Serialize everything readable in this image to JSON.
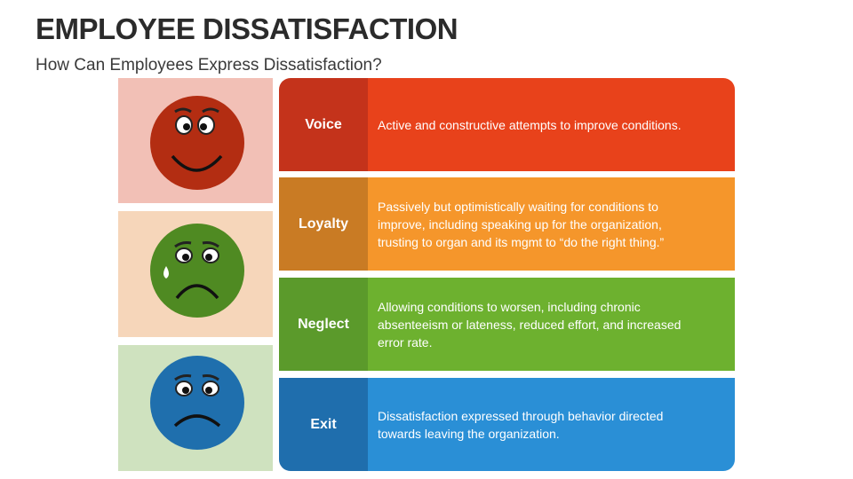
{
  "header": {
    "title": "EMPLOYEE DISSATISFACTION",
    "subtitle": "How Can Employees Express Dissatisfaction?"
  },
  "rows": [
    {
      "label": "Voice",
      "description": "Active and constructive attempts to improve conditions."
    },
    {
      "label": "Loyalty",
      "description": "Passively but optimistically waiting for conditions to improve, including speaking up for the organization, trusting to organ and its mgmt to “do the right thing.”"
    },
    {
      "label": "Neglect",
      "description": "Allowing conditions to worsen, including chronic absenteeism or lateness, reduced effort, and increased error rate."
    },
    {
      "label": "Exit",
      "description": "Dissatisfaction expressed through behavior directed towards leaving the organization."
    }
  ]
}
